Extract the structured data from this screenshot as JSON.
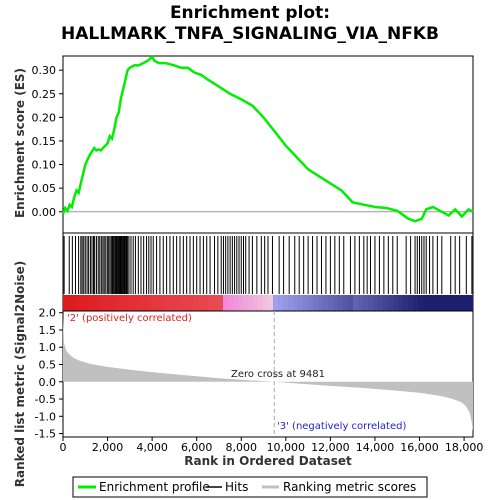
{
  "title_line1": "Enrichment plot:",
  "title_line2": "HALLMARK_TNFA_SIGNALING_VIA_NFKB",
  "top_panel": {
    "ylabel": "Enrichment score (ES)",
    "yticks": [
      "0.00",
      "0.05",
      "0.10",
      "0.15",
      "0.20",
      "0.25",
      "0.30"
    ]
  },
  "bottom_panel": {
    "ylabel": "Ranked list metric (Signal2Noise)",
    "yticks": [
      "2.0",
      "1.5",
      "1.0",
      "0.5",
      "0.0",
      "-0.5",
      "-1.0",
      "-1.5"
    ],
    "zero_cross_label": "Zero cross at 9481",
    "pos_label": "'2' (positively correlated)",
    "neg_label": "'3' (negatively correlated)"
  },
  "xlabel": "Rank in Ordered Dataset",
  "xticks": [
    "0",
    "2,000",
    "4,000",
    "6,000",
    "8,000",
    "10,000",
    "12,000",
    "14,000",
    "16,000",
    "18,000"
  ],
  "legend": {
    "items": [
      "Enrichment profile",
      "Hits",
      "Ranking metric scores"
    ]
  },
  "colors": {
    "es_line": "#00ee00",
    "hits": "#000000",
    "metric_fill": "#c0c0c0",
    "pos_heat": "#dd2222",
    "neg_heat": "#2222cc"
  },
  "chart_data": {
    "type": "line",
    "n_genes": 18400,
    "zero_cross": 9481,
    "xlim": [
      0,
      18400
    ],
    "es_ylim": [
      -0.045,
      0.33
    ],
    "metric_ylim": [
      -1.6,
      2.05
    ],
    "enrichment_profile": {
      "x": [
        0,
        100,
        200,
        300,
        400,
        500,
        600,
        700,
        800,
        900,
        1000,
        1100,
        1200,
        1300,
        1400,
        1500,
        1600,
        1700,
        1800,
        1900,
        2000,
        2100,
        2200,
        2300,
        2400,
        2500,
        2600,
        2700,
        2800,
        2900,
        3000,
        3200,
        3400,
        3600,
        3800,
        4000,
        4100,
        4300,
        4600,
        5000,
        5300,
        5600,
        5900,
        6200,
        6500,
        7000,
        7500,
        8000,
        8500,
        9000,
        9500,
        10000,
        10500,
        11000,
        11500,
        12000,
        12500,
        13000,
        13500,
        14000,
        14500,
        15000,
        15500,
        15800,
        16100,
        16300,
        16600,
        17000,
        17300,
        17600,
        17900,
        18200,
        18400
      ],
      "y": [
        -0.005,
        0.008,
        0.002,
        0.015,
        0.01,
        0.03,
        0.045,
        0.04,
        0.06,
        0.08,
        0.1,
        0.11,
        0.12,
        0.128,
        0.135,
        0.13,
        0.132,
        0.13,
        0.135,
        0.14,
        0.145,
        0.16,
        0.155,
        0.175,
        0.2,
        0.21,
        0.24,
        0.26,
        0.28,
        0.3,
        0.305,
        0.31,
        0.31,
        0.315,
        0.32,
        0.328,
        0.32,
        0.315,
        0.315,
        0.31,
        0.305,
        0.305,
        0.295,
        0.29,
        0.28,
        0.265,
        0.25,
        0.238,
        0.225,
        0.2,
        0.17,
        0.14,
        0.115,
        0.09,
        0.075,
        0.06,
        0.045,
        0.02,
        0.015,
        0.01,
        0.008,
        0.002,
        -0.015,
        -0.02,
        -0.015,
        0.005,
        0.01,
        0.0,
        -0.008,
        0.005,
        -0.01,
        0.005,
        0.0
      ]
    },
    "hits": [
      50,
      280,
      420,
      560,
      700,
      800,
      860,
      930,
      1000,
      1080,
      1150,
      1230,
      1300,
      1370,
      1420,
      1500,
      1580,
      1650,
      1720,
      1790,
      1850,
      1920,
      1990,
      2050,
      2110,
      2170,
      2220,
      2270,
      2320,
      2360,
      2400,
      2440,
      2480,
      2520,
      2560,
      2600,
      2640,
      2680,
      2720,
      2760,
      2800,
      2850,
      2900,
      2960,
      3050,
      3150,
      3250,
      3380,
      3500,
      3620,
      3750,
      3850,
      3950,
      4050,
      4200,
      4350,
      4500,
      4650,
      4800,
      4950,
      5100,
      5250,
      5400,
      5550,
      5700,
      5850,
      6000,
      6150,
      6300,
      6450,
      6600,
      6800,
      6950,
      7100,
      7200,
      7300,
      7400,
      7500,
      7600,
      7700,
      7800,
      7900,
      8000,
      8100,
      8200,
      8350,
      8500,
      8700,
      8900,
      9050,
      9200,
      9400,
      9700,
      9900,
      10150,
      10400,
      10600,
      10800,
      11000,
      11200,
      11400,
      11600,
      11800,
      12000,
      12200,
      12400,
      12600,
      12900,
      13100,
      13300,
      13500,
      13650,
      13800,
      14000,
      14200,
      14400,
      14600,
      14800,
      15000,
      15400,
      15600,
      15800,
      15900,
      16000,
      16100,
      16200,
      16300,
      16450,
      16600,
      16800,
      17000,
      17400,
      17600,
      17800,
      18100,
      18350
    ],
    "ranking_metric": {
      "x": [
        0,
        50,
        150,
        300,
        500,
        800,
        1200,
        2000,
        3000,
        4000,
        5000,
        6000,
        7000,
        8000,
        9000,
        9481,
        10500,
        12000,
        13500,
        15000,
        16000,
        17000,
        17500,
        17900,
        18100,
        18250,
        18350,
        18400
      ],
      "y": [
        1.85,
        1.1,
        0.9,
        0.78,
        0.68,
        0.6,
        0.52,
        0.43,
        0.35,
        0.28,
        0.22,
        0.16,
        0.1,
        0.06,
        0.02,
        0.0,
        -0.05,
        -0.12,
        -0.18,
        -0.26,
        -0.32,
        -0.42,
        -0.5,
        -0.6,
        -0.72,
        -0.9,
        -1.2,
        -1.45
      ]
    }
  }
}
